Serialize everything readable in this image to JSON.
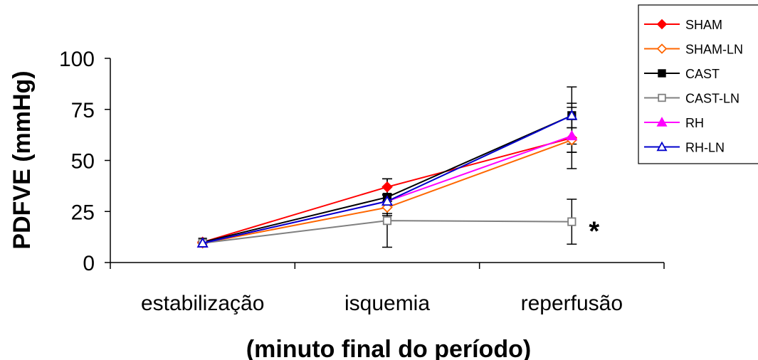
{
  "chart_data": {
    "type": "line",
    "title": "",
    "xlabel": "(minuto final do período)",
    "ylabel": "PDFVE (mmHg)",
    "categories": [
      "estabilização",
      "isquemia",
      "reperfusão"
    ],
    "ylim": [
      0,
      100
    ],
    "yticks": [
      0,
      25,
      50,
      75,
      100
    ],
    "grid": false,
    "legend_position": "top-right",
    "series": [
      {
        "name": "SHAM",
        "color": "#ff0000",
        "marker": "diamond",
        "filled": true,
        "values": [
          10,
          37,
          61
        ],
        "errors": [
          null,
          4,
          15
        ]
      },
      {
        "name": "SHAM-LN",
        "color": "#ff6600",
        "marker": "diamond",
        "filled": false,
        "values": [
          9.5,
          27,
          60
        ],
        "errors": [
          null,
          3,
          6
        ]
      },
      {
        "name": "CAST",
        "color": "#000000",
        "marker": "square",
        "filled": true,
        "values": [
          10,
          32,
          72
        ],
        "errors": [
          null,
          9,
          6
        ]
      },
      {
        "name": "CAST-LN",
        "color": "#808080",
        "marker": "square",
        "filled": false,
        "values": [
          9.5,
          20.5,
          20
        ],
        "errors": [
          null,
          13,
          11
        ]
      },
      {
        "name": "RH",
        "color": "#ff00ff",
        "marker": "triangle",
        "filled": true,
        "values": [
          9.5,
          30,
          62
        ],
        "errors": [
          null,
          3,
          8
        ]
      },
      {
        "name": "RH-LN",
        "color": "#0000cc",
        "marker": "triangle",
        "filled": false,
        "values": [
          9.5,
          30,
          72
        ],
        "errors": [
          null,
          3,
          14
        ]
      }
    ],
    "annotations": [
      {
        "text": "*",
        "category": "reperfusão",
        "y": 20
      }
    ]
  }
}
